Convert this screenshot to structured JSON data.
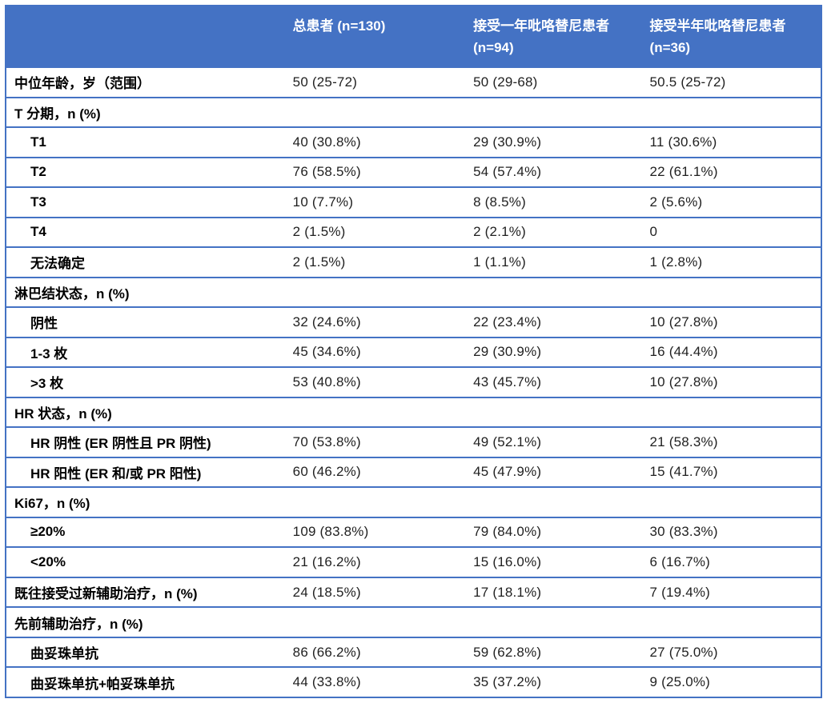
{
  "colors": {
    "accent_blue": "#4472C4",
    "header_text": "#FFFFFF",
    "body_text": "#1F1F1F",
    "label_text": "#000000",
    "background": "#FFFFFF"
  },
  "table": {
    "description": "患者基线特征表",
    "columns": [
      {
        "line1": "",
        "line2": ""
      },
      {
        "line1": "总患者 (n=130)",
        "line2": ""
      },
      {
        "line1": "接受一年吡咯替尼患者",
        "line2": "(n=94)"
      },
      {
        "line1": "接受半年吡咯替尼患者",
        "line2": "(n=36)"
      }
    ],
    "rows": [
      {
        "label": "中位年龄，岁（范围）",
        "indent": false,
        "section": false,
        "values": [
          "50 (25-72)",
          "50 (29-68)",
          "50.5 (25-72)"
        ]
      },
      {
        "label": "T 分期，n (%)",
        "indent": false,
        "section": true,
        "values": [
          "",
          "",
          ""
        ]
      },
      {
        "label": "T1",
        "indent": true,
        "section": false,
        "values": [
          "40 (30.8%)",
          "29 (30.9%)",
          "11 (30.6%)"
        ]
      },
      {
        "label": "T2",
        "indent": true,
        "section": false,
        "values": [
          "76 (58.5%)",
          "54 (57.4%)",
          "22 (61.1%)"
        ]
      },
      {
        "label": "T3",
        "indent": true,
        "section": false,
        "values": [
          "10 (7.7%)",
          "8 (8.5%)",
          "2 (5.6%)"
        ]
      },
      {
        "label": "T4",
        "indent": true,
        "section": false,
        "values": [
          "2 (1.5%)",
          "2 (2.1%)",
          "0"
        ]
      },
      {
        "label": "无法确定",
        "indent": true,
        "section": false,
        "values": [
          "2 (1.5%)",
          "1 (1.1%)",
          "1 (2.8%)"
        ]
      },
      {
        "label": "淋巴结状态，n (%)",
        "indent": false,
        "section": true,
        "values": [
          "",
          "",
          ""
        ]
      },
      {
        "label": "阴性",
        "indent": true,
        "section": false,
        "values": [
          "32 (24.6%)",
          "22 (23.4%)",
          "10 (27.8%)"
        ]
      },
      {
        "label": "1-3 枚",
        "indent": true,
        "section": false,
        "values": [
          "45 (34.6%)",
          "29 (30.9%)",
          "16 (44.4%)"
        ]
      },
      {
        "label": ">3 枚",
        "indent": true,
        "section": false,
        "values": [
          "53 (40.8%)",
          "43 (45.7%)",
          "10 (27.8%)"
        ]
      },
      {
        "label": "HR 状态，n (%)",
        "indent": false,
        "section": true,
        "values": [
          "",
          "",
          ""
        ]
      },
      {
        "label": "HR 阴性 (ER 阴性且 PR 阴性)",
        "indent": true,
        "section": false,
        "values": [
          "70 (53.8%)",
          "49 (52.1%)",
          "21 (58.3%)"
        ]
      },
      {
        "label": "HR 阳性 (ER 和/或 PR 阳性)",
        "indent": true,
        "section": false,
        "values": [
          "60 (46.2%)",
          "45 (47.9%)",
          "15 (41.7%)"
        ]
      },
      {
        "label": "Ki67，n (%)",
        "indent": false,
        "section": true,
        "values": [
          "",
          "",
          ""
        ]
      },
      {
        "label": "≥20%",
        "indent": true,
        "section": false,
        "values": [
          "109 (83.8%)",
          "79 (84.0%)",
          "30 (83.3%)"
        ]
      },
      {
        "label": "<20%",
        "indent": true,
        "section": false,
        "values": [
          "21 (16.2%)",
          "15 (16.0%)",
          "6 (16.7%)"
        ]
      },
      {
        "label": "既往接受过新辅助治疗，n (%)",
        "indent": false,
        "section": false,
        "values": [
          "24 (18.5%)",
          "17 (18.1%)",
          "7 (19.4%)"
        ]
      },
      {
        "label": "先前辅助治疗，n (%)",
        "indent": false,
        "section": true,
        "values": [
          "",
          "",
          ""
        ]
      },
      {
        "label": "曲妥珠单抗",
        "indent": true,
        "section": false,
        "values": [
          "86 (66.2%)",
          "59 (62.8%)",
          "27 (75.0%)"
        ]
      },
      {
        "label": "曲妥珠单抗+帕妥珠单抗",
        "indent": true,
        "section": false,
        "values": [
          "44 (33.8%)",
          "35 (37.2%)",
          "9 (25.0%)"
        ]
      }
    ]
  }
}
